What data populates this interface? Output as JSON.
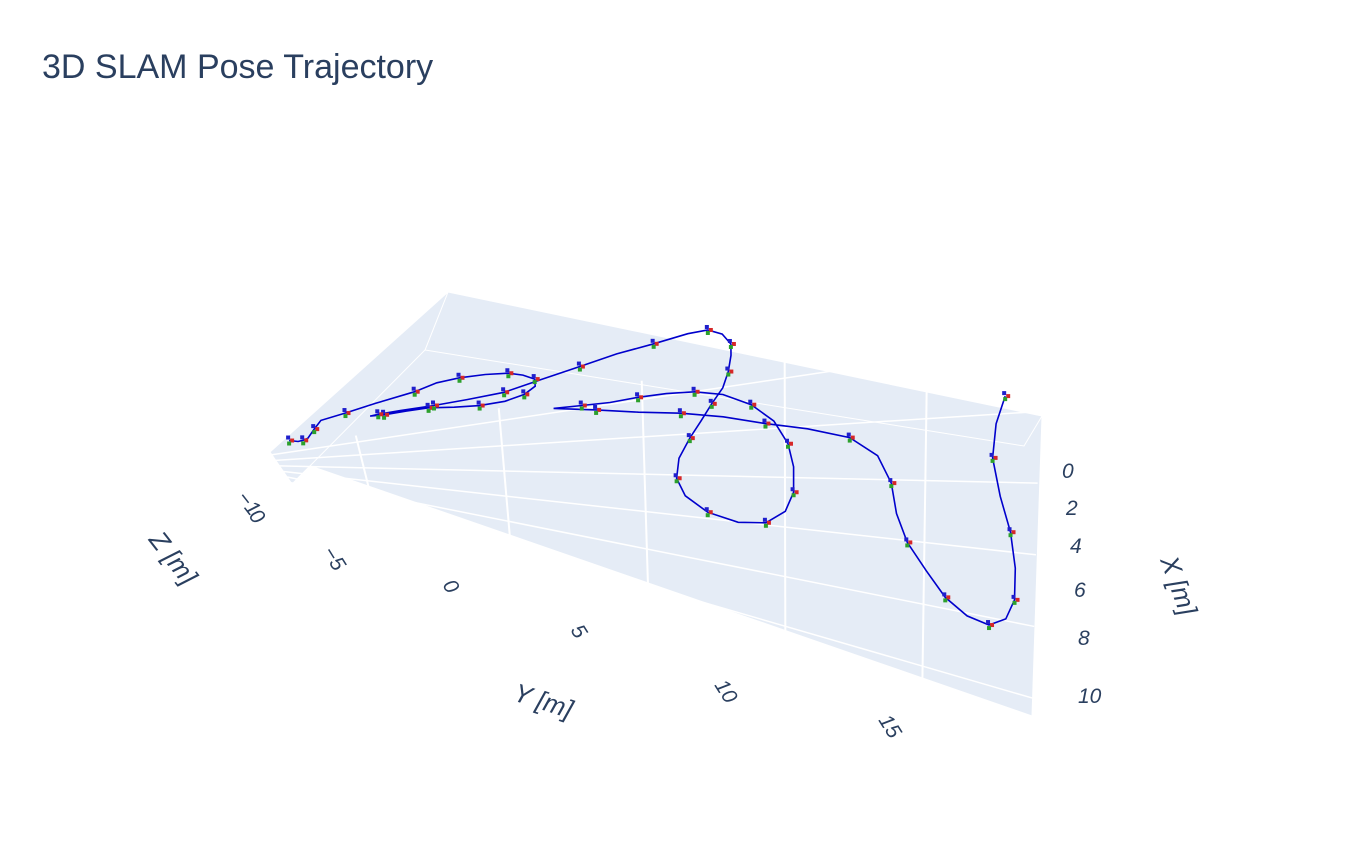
{
  "title": "3D SLAM Pose Trajectory",
  "colors": {
    "title": "#2a3f5f",
    "trajectory": "#0000cc",
    "pane": "#e5ecf6",
    "grid": "#ffffff",
    "axis_x_marker": "#d62728",
    "axis_y_marker": "#2ca02c",
    "axis_z_marker": "#1f1fcc"
  },
  "chart_data": {
    "type": "line3d",
    "title": "3D SLAM Pose Trajectory",
    "xlabel": "X [m]",
    "ylabel": "Y [m]",
    "zlabel": "Z [m]",
    "x_ticks": [
      "0",
      "2",
      "4",
      "6",
      "8",
      "10"
    ],
    "y_ticks": [
      "−5",
      "0",
      "5",
      "10",
      "15"
    ],
    "z_ticks": [
      "−1",
      "0"
    ],
    "xlim": [
      -1,
      10.5
    ],
    "ylim": [
      -8,
      19
    ],
    "zlim": [
      -1,
      0
    ],
    "series": [
      {
        "x": [
          3.2,
          3.5,
          3.2,
          2.7,
          1.8,
          1.1,
          0.7,
          0.2,
          -0.2,
          -0.5,
          -0.6,
          -0.5,
          -0.3,
          0.0,
          0.4,
          0.9,
          1.4,
          1.8,
          2.0,
          2.0,
          1.9,
          2.1,
          2.4,
          2.5,
          2.3,
          2.0,
          1.7,
          1.4,
          1.1,
          0.5,
          0.0,
          -0.4,
          -0.6,
          -0.8,
          -0.8,
          -0.5,
          0.0,
          0.5,
          1.2,
          1.9,
          2.6,
          3.4,
          4.2,
          5.2,
          6.2,
          7.0,
          7.6,
          7.8,
          7.6,
          7.0,
          6.2,
          5.2,
          4.3,
          3.4,
          2.7,
          2.2,
          2.0,
          2.0,
          2.1,
          2.3,
          2.4,
          2.5,
          2.7,
          2.9,
          3.0,
          3.2,
          3.5,
          3.7,
          4.0,
          4.6,
          5.5,
          6.5,
          7.4,
          8.2,
          8.9,
          9.3,
          9.4,
          9.1,
          8.5,
          7.6,
          6.6,
          5.6,
          4.5,
          3.5,
          2.7
        ],
        "y": [
          -7.5,
          -7.2,
          -7.0,
          -6.8,
          -6.5,
          -6.2,
          -5.3,
          -4.2,
          -2.8,
          -2.0,
          -1.2,
          -0.3,
          0.5,
          1.0,
          1.4,
          1.4,
          1.0,
          0.3,
          -0.6,
          -1.5,
          -2.4,
          -3.2,
          -4.0,
          -4.5,
          -4.2,
          -3.4,
          -2.2,
          -1.0,
          0.3,
          1.6,
          3.0,
          4.3,
          5.6,
          6.8,
          7.5,
          8.0,
          8.3,
          8.3,
          8.2,
          8.0,
          7.6,
          7.2,
          6.8,
          6.4,
          6.3,
          6.6,
          7.4,
          8.5,
          9.5,
          10.2,
          10.5,
          10.5,
          10.3,
          9.8,
          9.0,
          8.0,
          7.0,
          6.0,
          5.0,
          4.0,
          3.0,
          2.0,
          3.5,
          5.0,
          6.5,
          8.0,
          9.5,
          11.0,
          12.5,
          13.5,
          14.0,
          14.2,
          14.6,
          15.3,
          16.0,
          16.8,
          17.6,
          18.2,
          18.5,
          18.5,
          18.3,
          17.9,
          17.6,
          17.7,
          18.0
        ],
        "z": [
          -0.5,
          -0.5,
          -0.5,
          -0.5,
          -0.4,
          -0.3,
          -0.25,
          -0.2,
          -0.15,
          -0.1,
          -0.1,
          -0.1,
          -0.1,
          -0.1,
          -0.1,
          -0.1,
          -0.1,
          -0.1,
          -0.1,
          -0.1,
          -0.1,
          -0.1,
          -0.1,
          -0.1,
          -0.1,
          -0.1,
          -0.1,
          -0.1,
          -0.1,
          -0.1,
          -0.1,
          -0.1,
          -0.1,
          -0.1,
          -0.1,
          -0.1,
          -0.1,
          -0.1,
          -0.1,
          -0.1,
          -0.1,
          -0.1,
          -0.1,
          -0.1,
          -0.1,
          -0.1,
          -0.1,
          -0.1,
          -0.1,
          -0.1,
          -0.1,
          -0.1,
          -0.1,
          -0.1,
          -0.1,
          -0.1,
          -0.1,
          -0.1,
          -0.1,
          -0.1,
          -0.1,
          -0.1,
          -0.1,
          -0.1,
          -0.1,
          -0.1,
          -0.1,
          -0.1,
          -0.1,
          -0.1,
          -0.1,
          -0.1,
          -0.1,
          -0.1,
          -0.1,
          -0.1,
          -0.1,
          -0.1,
          -0.1,
          -0.1,
          -0.1,
          -0.1,
          -0.1,
          -0.1,
          -0.1
        ]
      }
    ]
  }
}
